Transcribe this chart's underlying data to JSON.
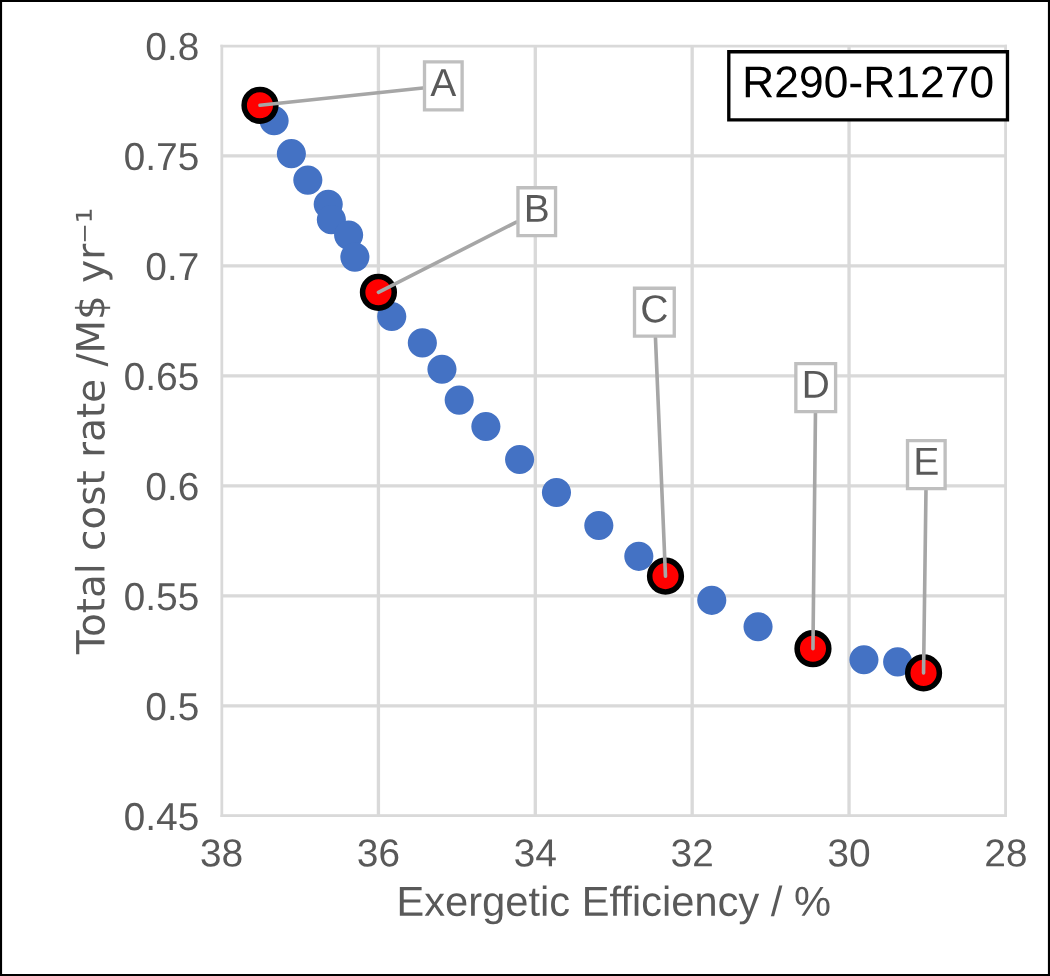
{
  "chart_data": {
    "type": "scatter",
    "title": "R290-R1270",
    "xlabel": "Exergetic Efficiency / %",
    "ylabel": "Total cost rate /M$ yr⁻¹",
    "xlim": [
      38,
      28
    ],
    "xticks": [
      38,
      36,
      34,
      32,
      30,
      28
    ],
    "ylim": [
      0.45,
      0.8
    ],
    "yticks": [
      {
        "value": 0.45,
        "label": "0.45"
      },
      {
        "value": 0.5,
        "label": "0.5"
      },
      {
        "value": 0.55,
        "label": "0.55"
      },
      {
        "value": 0.6,
        "label": "0.6"
      },
      {
        "value": 0.65,
        "label": "0.65"
      },
      {
        "value": 0.7,
        "label": "0.7"
      },
      {
        "value": 0.75,
        "label": "0.75"
      },
      {
        "value": 0.8,
        "label": "0.8"
      }
    ],
    "grid": true,
    "marker": "circle",
    "series": [
      {
        "color": "#4472c4",
        "x": [
          37.33,
          37.11,
          36.9,
          36.64,
          36.6,
          36.38,
          36.3,
          35.83,
          35.44,
          35.19,
          34.97,
          34.63,
          34.2,
          33.73,
          33.19,
          32.68,
          31.75,
          31.16,
          29.81,
          29.38
        ],
        "values": [
          0.766,
          0.751,
          0.739,
          0.728,
          0.721,
          0.714,
          0.704,
          0.677,
          0.665,
          0.653,
          0.639,
          0.627,
          0.612,
          0.597,
          0.582,
          0.568,
          0.548,
          0.536,
          0.521,
          0.52
        ]
      },
      {
        "color": "#ff0000",
        "x": [
          37.51,
          36.0,
          32.34,
          30.46,
          29.05
        ],
        "values": [
          0.773,
          0.688,
          0.559,
          0.526,
          0.515
        ]
      }
    ],
    "annotations": [
      {
        "text": "A",
        "x": 37.51,
        "y": 0.773
      },
      {
        "text": "B",
        "x": 36.0,
        "y": 0.688
      },
      {
        "text": "C",
        "x": 32.34,
        "y": 0.559
      },
      {
        "text": "D",
        "x": 30.46,
        "y": 0.526
      },
      {
        "text": "E",
        "x": 29.05,
        "y": 0.515
      }
    ]
  }
}
